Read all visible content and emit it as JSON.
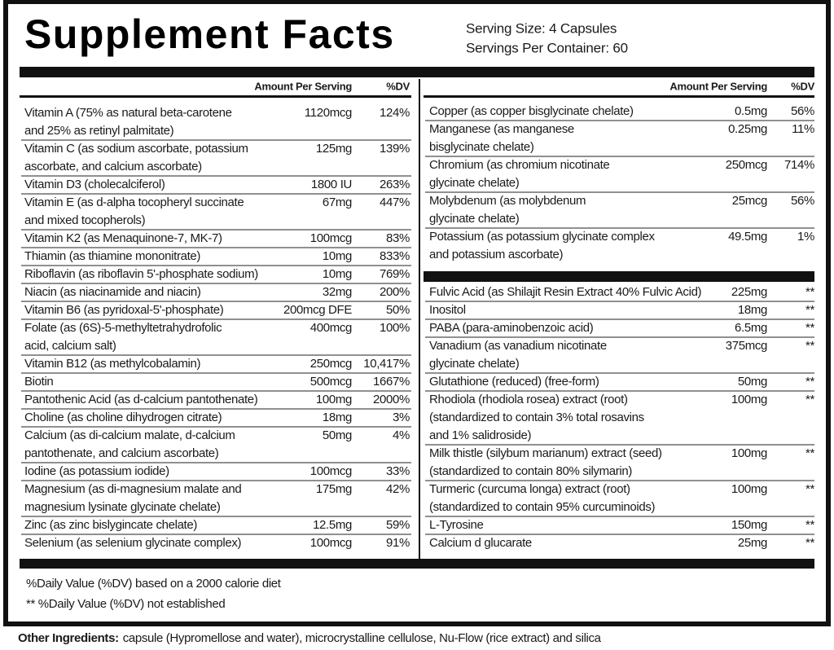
{
  "header": {
    "title": "Supplement Facts",
    "serving_size": "Serving Size: 4 Capsules",
    "servings_per_container": "Servings Per Container: 60"
  },
  "column_headers": {
    "amount": "Amount Per Serving",
    "dv": "%DV"
  },
  "left_rows": [
    {
      "name": [
        "Vitamin A (75% as natural beta-carotene",
        "and 25% as retinyl palmitate)"
      ],
      "amount": "1120mcg",
      "dv": "124%"
    },
    {
      "name": [
        "Vitamin C (as sodium ascorbate, potassium",
        "ascorbate, and calcium ascorbate)"
      ],
      "amount": "125mg",
      "dv": "139%"
    },
    {
      "name": [
        "Vitamin D3 (cholecalciferol)"
      ],
      "amount": "1800 IU",
      "dv": "263%"
    },
    {
      "name": [
        "Vitamin E (as d-alpha tocopheryl succinate",
        " and mixed tocopherols)"
      ],
      "amount": "67mg",
      "dv": "447%"
    },
    {
      "name": [
        "Vitamin K2 (as Menaquinone-7, MK-7)"
      ],
      "amount": "100mcg",
      "dv": "83%"
    },
    {
      "name": [
        "Thiamin (as thiamine mononitrate)"
      ],
      "amount": "10mg",
      "dv": "833%"
    },
    {
      "name": [
        "Riboflavin (as riboflavin 5'-phosphate sodium)"
      ],
      "amount": "10mg",
      "dv": "769%"
    },
    {
      "name": [
        "Niacin (as niacinamide and niacin)"
      ],
      "amount": "32mg",
      "dv": "200%"
    },
    {
      "name": [
        "Vitamin B6 (as pyridoxal-5'-phosphate)"
      ],
      "amount": "200mcg DFE",
      "dv": "50%"
    },
    {
      "name": [
        "Folate (as (6S)-5-methyltetrahydrofolic",
        " acid, calcium salt)"
      ],
      "amount": "400mcg",
      "dv": "100%"
    },
    {
      "name": [
        "Vitamin B12 (as methylcobalamin)"
      ],
      "amount": "250mcg",
      "dv": "10,417%"
    },
    {
      "name": [
        "Biotin"
      ],
      "amount": "500mcg",
      "dv": "1667%"
    },
    {
      "name": [
        "Pantothenic Acid (as d-calcium pantothenate)"
      ],
      "amount": "100mg",
      "dv": "2000%"
    },
    {
      "name": [
        "Choline (as choline dihydrogen citrate)"
      ],
      "amount": "18mg",
      "dv": "3%"
    },
    {
      "name": [
        "Calcium (as di-calcium malate, d-calcium",
        "pantothenate, and calcium ascorbate)"
      ],
      "amount": "50mg",
      "dv": "4%"
    },
    {
      "name": [
        "Iodine (as potassium iodide)"
      ],
      "amount": "100mcg",
      "dv": "33%"
    },
    {
      "name": [
        "Magnesium (as di-magnesium malate and",
        "magnesium lysinate glycinate chelate)"
      ],
      "amount": "175mg",
      "dv": "42%"
    },
    {
      "name": [
        "Zinc (as zinc bislygincate chelate)"
      ],
      "amount": "12.5mg",
      "dv": "59%"
    },
    {
      "name": [
        "Selenium (as selenium glycinate complex)"
      ],
      "amount": "100mcg",
      "dv": "91%"
    }
  ],
  "right_rows": [
    {
      "name": [
        "Copper (as copper bisglycinate chelate)"
      ],
      "amount": "0.5mg",
      "dv": "56%"
    },
    {
      "name": [
        "Manganese (as manganese",
        "bisglycinate chelate)"
      ],
      "amount": "0.25mg",
      "dv": "11%"
    },
    {
      "name": [
        "Chromium (as chromium nicotinate",
        "glycinate chelate)"
      ],
      "amount": "250mcg",
      "dv": "714%"
    },
    {
      "name": [
        "Molybdenum (as molybdenum",
        "glycinate chelate)"
      ],
      "amount": "25mcg",
      "dv": "56%"
    },
    {
      "name": [
        "Potassium (as potassium glycinate complex",
        "and potassium ascorbate)"
      ],
      "amount": "49.5mg",
      "dv": "1%"
    }
  ],
  "right_rows_2": [
    {
      "name": [
        "Fulvic Acid (as Shilajit Resin Extract 40% Fulvic Acid)"
      ],
      "amount": "225mg",
      "dv": "**"
    },
    {
      "name": [
        "Inositol"
      ],
      "amount": "18mg",
      "dv": "**"
    },
    {
      "name": [
        "PABA (para-aminobenzoic acid)"
      ],
      "amount": "6.5mg",
      "dv": "**"
    },
    {
      "name": [
        "Vanadium (as vanadium nicotinate",
        "glycinate chelate)"
      ],
      "amount": "375mcg",
      "dv": "**"
    },
    {
      "name": [
        "Glutathione (reduced) (free-form)"
      ],
      "amount": "50mg",
      "dv": "**"
    },
    {
      "name": [
        "Rhodiola (rhodiola rosea) extract (root)",
        "(standardized to contain 3% total rosavins",
        "and 1% salidroside)"
      ],
      "amount": "100mg",
      "dv": "**"
    },
    {
      "name": [
        "Milk thistle (silybum marianum) extract (seed)",
        "(standardized to contain 80% silymarin)"
      ],
      "amount": "100mg",
      "dv": "**"
    },
    {
      "name": [
        "Turmeric (curcuma longa) extract (root)",
        "(standardized to contain 95% curcuminoids)"
      ],
      "amount": "100mg",
      "dv": "**"
    },
    {
      "name": [
        "L-Tyrosine"
      ],
      "amount": "150mg",
      "dv": "**"
    },
    {
      "name": [
        "Calcium d glucarate"
      ],
      "amount": "25mg",
      "dv": "**"
    }
  ],
  "footnotes": [
    "%Daily Value (%DV) based on a 2000 calorie diet",
    "** %Daily Value (%DV) not established"
  ],
  "other_ingredients": {
    "label": "Other Ingredients:",
    "text": "capsule (Hypromellose and water), microcrystalline cellulose, Nu-Flow (rice extract) and silica"
  }
}
